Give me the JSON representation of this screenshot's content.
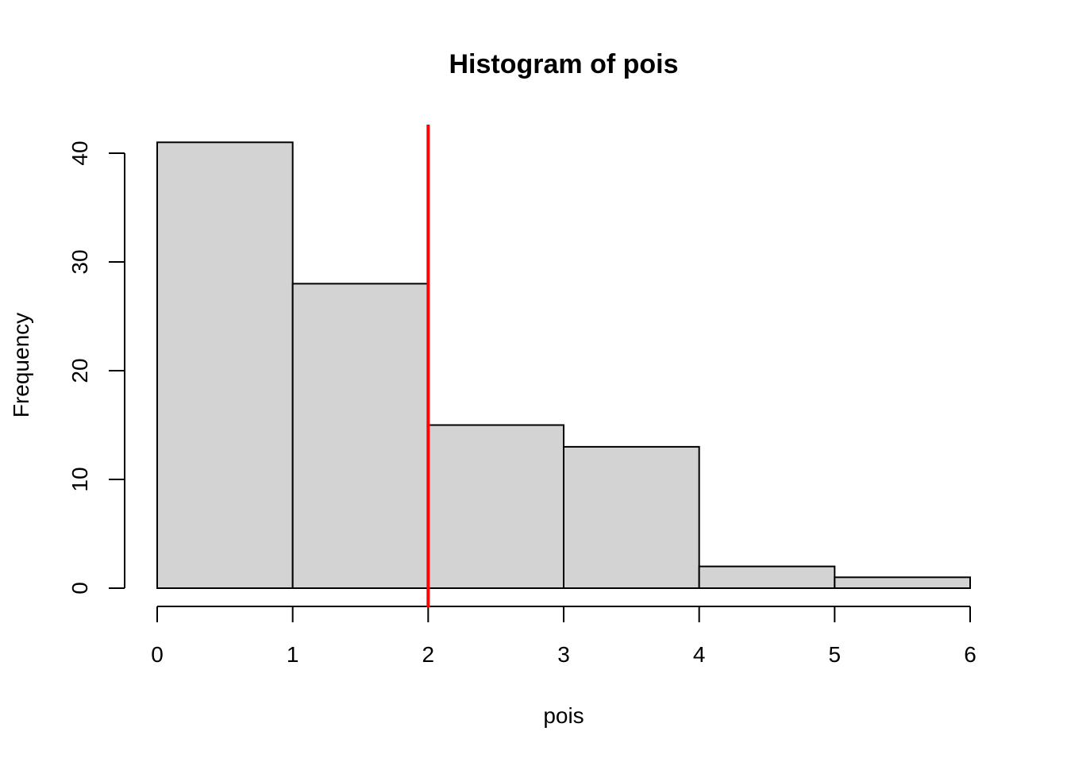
{
  "chart_data": {
    "type": "bar",
    "title": "Histogram of pois",
    "xlabel": "pois",
    "ylabel": "Frequency",
    "bins": [
      {
        "start": 0,
        "end": 1,
        "count": 41
      },
      {
        "start": 1,
        "end": 2,
        "count": 28
      },
      {
        "start": 2,
        "end": 3,
        "count": 15
      },
      {
        "start": 3,
        "end": 4,
        "count": 13
      },
      {
        "start": 4,
        "end": 5,
        "count": 2
      },
      {
        "start": 5,
        "end": 6,
        "count": 1
      }
    ],
    "xlim": [
      0,
      6
    ],
    "ylim": [
      0,
      40
    ],
    "x_ticks": [
      0,
      1,
      2,
      3,
      4,
      5,
      6
    ],
    "y_ticks": [
      0,
      10,
      20,
      30,
      40
    ],
    "grid": false,
    "reference_line": {
      "x": 2,
      "color": "#ff0000"
    },
    "bar_color": "#d3d3d3"
  }
}
